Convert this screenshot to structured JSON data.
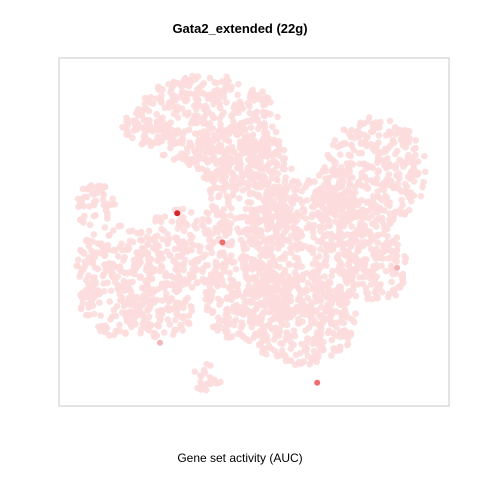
{
  "chart_data": {
    "type": "scatter",
    "title": "Gata2_extended (22g)",
    "xlabel": "Gene set activity (AUC)",
    "ylabel": "",
    "grid": false,
    "colors": {
      "background_cells": "#fcdcdc",
      "low_auc": "#f4b6b6",
      "mid_auc": "#ec6f6f",
      "high_auc": "#d7262b",
      "frame": "#c8c8c8"
    },
    "series": [
      {
        "points": [
          {
            "x": 0.303,
            "y": 0.554,
            "auc": 1.0
          },
          {
            "x": 0.419,
            "y": 0.47,
            "auc": 0.6
          },
          {
            "x": 0.662,
            "y": 0.067,
            "auc": 0.7
          },
          {
            "x": 0.867,
            "y": 0.397,
            "auc": 0.45
          },
          {
            "x": 0.259,
            "y": 0.182,
            "auc": 0.45
          }
        ]
      }
    ]
  }
}
